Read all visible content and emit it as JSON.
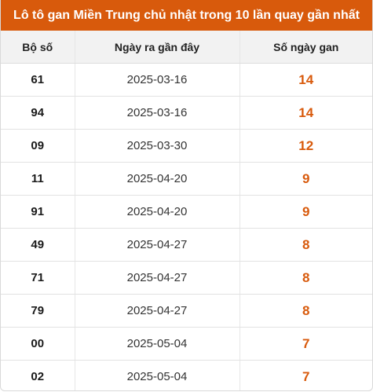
{
  "title": "Lô tô gan Miền Trung chủ nhật trong 10 lần quay gần nhất",
  "headers": {
    "number": "Bộ số",
    "recent_date": "Ngày ra gần đây",
    "gap_days": "Số ngày gan"
  },
  "rows": [
    {
      "number": "61",
      "date": "2025-03-16",
      "gap": "14"
    },
    {
      "number": "94",
      "date": "2025-03-16",
      "gap": "14"
    },
    {
      "number": "09",
      "date": "2025-03-30",
      "gap": "12"
    },
    {
      "number": "11",
      "date": "2025-04-20",
      "gap": "9"
    },
    {
      "number": "91",
      "date": "2025-04-20",
      "gap": "9"
    },
    {
      "number": "49",
      "date": "2025-04-27",
      "gap": "8"
    },
    {
      "number": "71",
      "date": "2025-04-27",
      "gap": "8"
    },
    {
      "number": "79",
      "date": "2025-04-27",
      "gap": "8"
    },
    {
      "number": "00",
      "date": "2025-05-04",
      "gap": "7"
    },
    {
      "number": "02",
      "date": "2025-05-04",
      "gap": "7"
    }
  ],
  "colors": {
    "accent": "#d85a0c",
    "header_bg": "#f2f2f2"
  }
}
